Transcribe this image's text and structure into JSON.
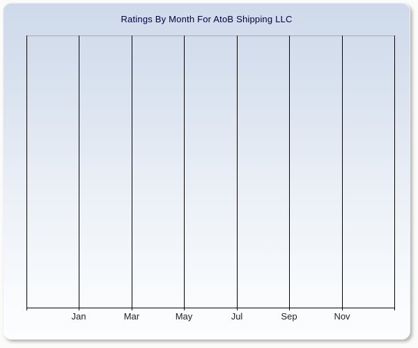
{
  "panel_title": "Ratings By Month For AtoB Shipping LLC",
  "colors": {
    "panel_gradient_top": "#cfdaeb",
    "panel_gradient_bottom": "#fcfdfe",
    "title_text": "#000040",
    "gridline": "#000000",
    "axis": "#000000",
    "plot_top_border": "#a3abb8",
    "tick_label_text": "#202020",
    "page_background": "#fbfbfa"
  },
  "chart_data": {
    "type": "line",
    "title": "Ratings By Month For AtoB Shipping LLC",
    "categories": [
      "Jan",
      "Mar",
      "May",
      "Jul",
      "Sep",
      "Nov"
    ],
    "series": [],
    "xlabel": "",
    "ylabel": "",
    "x_gridline_count": 8,
    "grid": "vertical-only",
    "legend": "none",
    "y_tick_labels": [],
    "notes": "plot area is empty; no data series, no y-axis labels are drawn"
  }
}
